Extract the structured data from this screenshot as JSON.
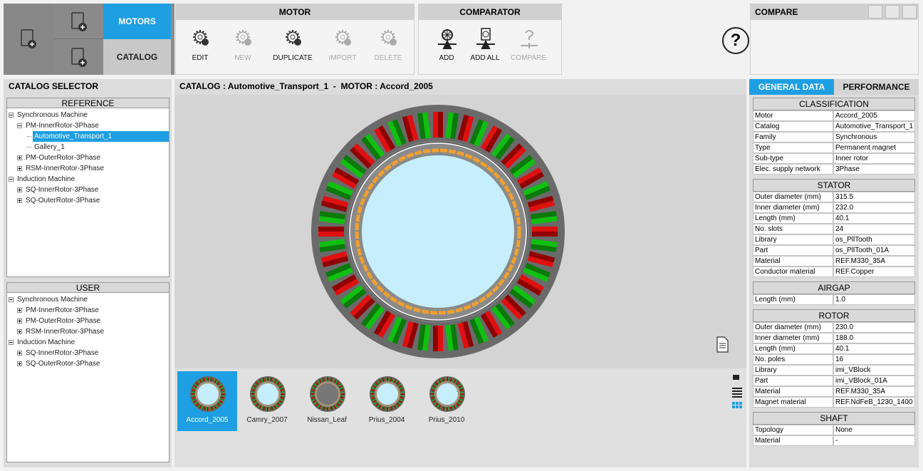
{
  "toolbar": {
    "tabs": [
      {
        "label": "MOTORS",
        "active": true
      },
      {
        "label": "CATALOG",
        "active": false
      }
    ],
    "groups": [
      {
        "title": "MOTOR",
        "buttons": [
          {
            "label": "EDIT",
            "enabled": true
          },
          {
            "label": "NEW",
            "enabled": false
          },
          {
            "label": "DUPLICATE",
            "enabled": true
          },
          {
            "label": "IMPORT",
            "enabled": false
          },
          {
            "label": "DELETE",
            "enabled": false
          }
        ]
      },
      {
        "title": "COMPARATOR",
        "buttons": [
          {
            "label": "ADD",
            "enabled": true
          },
          {
            "label": "ADD ALL",
            "enabled": true
          },
          {
            "label": "COMPARE",
            "enabled": false
          }
        ]
      }
    ],
    "help": "?"
  },
  "compare_panel": {
    "title": "COMPARE"
  },
  "catalog_selector": {
    "title": "CATALOG SELECTOR",
    "panels": [
      {
        "title": "REFERENCE",
        "tree": [
          {
            "label": "Synchronous Machine",
            "children": [
              {
                "label": "PM-InnerRotor-3Phase",
                "children": [
                  {
                    "label": "Automotive_Transport_1",
                    "selected": true
                  },
                  {
                    "label": "Gallery_1"
                  }
                ]
              },
              {
                "label": "PM-OuterRotor-3Phase",
                "expandable": true
              },
              {
                "label": "RSM-InnerRotor-3Phase",
                "expandable": true
              }
            ]
          },
          {
            "label": "Induction Machine",
            "children": [
              {
                "label": "SQ-InnerRotor-3Phase",
                "expandable": true
              },
              {
                "label": "SQ-OuterRotor-3Phase",
                "expandable": true
              }
            ]
          }
        ]
      },
      {
        "title": "USER",
        "tree": [
          {
            "label": "Synchronous Machine",
            "children": [
              {
                "label": "PM-InnerRotor-3Phase",
                "expandable": true
              },
              {
                "label": "PM-OuterRotor-3Phase",
                "expandable": true
              },
              {
                "label": "RSM-InnerRotor-3Phase",
                "expandable": true
              }
            ]
          },
          {
            "label": "Induction Machine",
            "children": [
              {
                "label": "SQ-InnerRotor-3Phase",
                "expandable": true
              },
              {
                "label": "SQ-OuterRotor-3Phase",
                "expandable": true
              }
            ]
          }
        ]
      }
    ]
  },
  "viewer": {
    "title": "CATALOG : Automotive_Transport_1  -  MOTOR : Accord_2005",
    "thumbnails": [
      {
        "label": "Accord_2005",
        "selected": true
      },
      {
        "label": "Camry_2007"
      },
      {
        "label": "Nissan_Leaf"
      },
      {
        "label": "Prius_2004"
      },
      {
        "label": "Prius_2010"
      }
    ]
  },
  "data_panel": {
    "tabs": [
      {
        "label": "GENERAL DATA",
        "active": true
      },
      {
        "label": "PERFORMANCE",
        "active": false
      }
    ],
    "sections": [
      {
        "title": "CLASSIFICATION",
        "rows": [
          [
            "Motor",
            "Accord_2005"
          ],
          [
            "Catalog",
            "Automotive_Transport_1"
          ],
          [
            "Family",
            "Synchronous"
          ],
          [
            "Type",
            "Permanent magnet"
          ],
          [
            "Sub-type",
            "Inner rotor"
          ],
          [
            "Elec. supply network",
            "3Phase"
          ]
        ]
      },
      {
        "title": "STATOR",
        "rows": [
          [
            "Outer diameter (mm)",
            "315.5"
          ],
          [
            "Inner diameter (mm)",
            "232.0"
          ],
          [
            "Length (mm)",
            "40.1"
          ],
          [
            "No. slots",
            "24"
          ],
          [
            "Library",
            "os_PllTooth"
          ],
          [
            "Part",
            "os_PllTooth_01A"
          ],
          [
            "Material",
            "REF.M330_35A"
          ],
          [
            "Conductor material",
            "REF.Copper"
          ]
        ]
      },
      {
        "title": "AIRGAP",
        "rows": [
          [
            "Length (mm)",
            "1.0"
          ]
        ]
      },
      {
        "title": "ROTOR",
        "rows": [
          [
            "Outer diameter (mm)",
            "230.0"
          ],
          [
            "Inner diameter (mm)",
            "188.0"
          ],
          [
            "Length (mm)",
            "40.1"
          ],
          [
            "No. poles",
            "16"
          ],
          [
            "Library",
            "imi_VBlock"
          ],
          [
            "Part",
            "imi_VBlock_01A"
          ],
          [
            "Material",
            "REF.M330_35A"
          ],
          [
            "Magnet material",
            "REF.NdFeB_1230_1400"
          ]
        ]
      },
      {
        "title": "SHAFT",
        "rows": [
          [
            "Topology",
            "None"
          ],
          [
            "Material",
            "-"
          ]
        ]
      }
    ]
  }
}
